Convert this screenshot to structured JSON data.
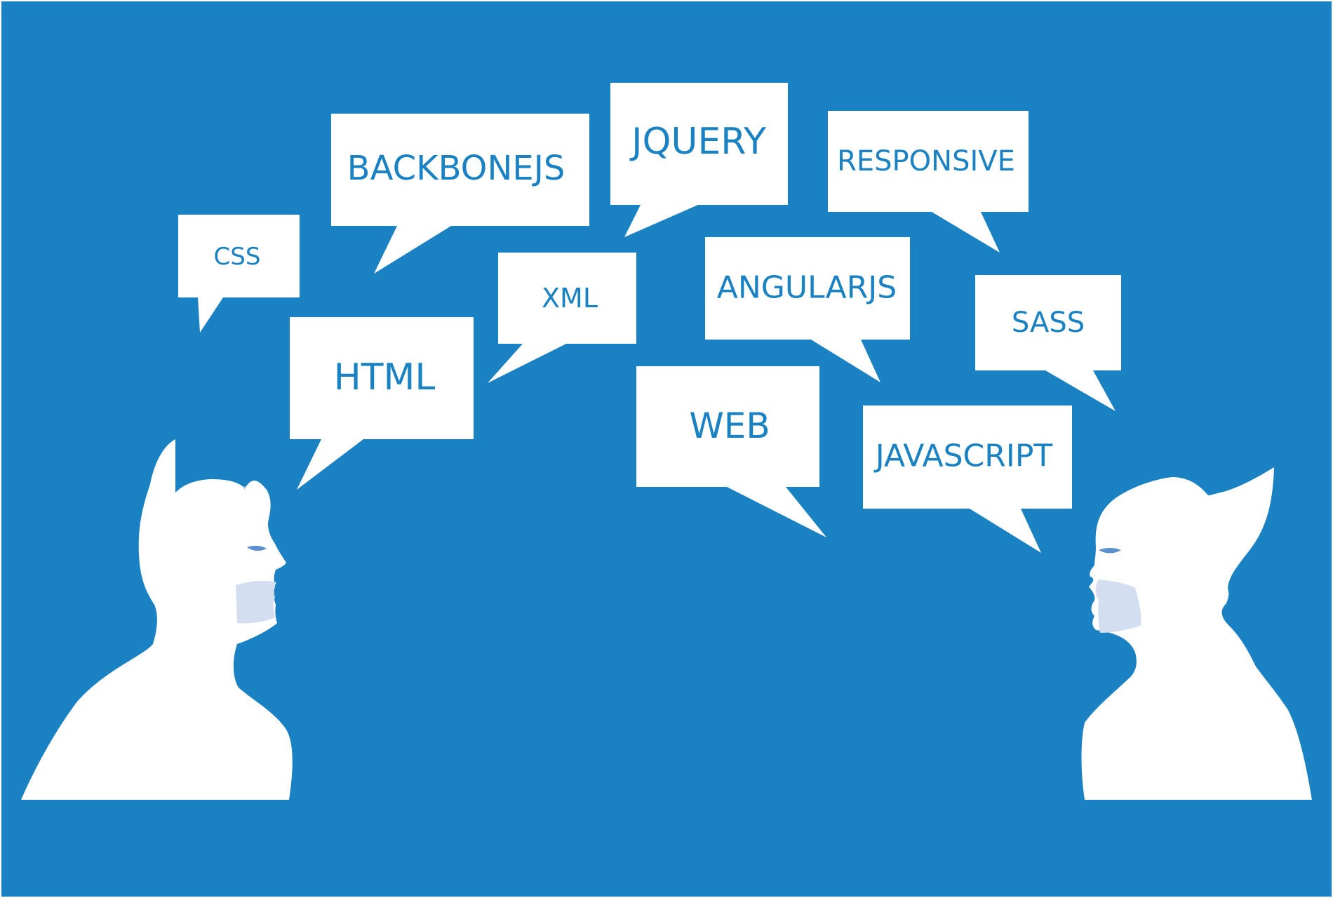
{
  "colors": {
    "background": "#1a81c3",
    "bubble": "#ffffff",
    "text": "#1a81c3",
    "figure": "#ffffff",
    "eye": "#5b8fd0",
    "mouth": "#d3def1"
  },
  "bubbles": {
    "css": "CSS",
    "backbonejs": "BACKBONEJS",
    "jquery": "JQUERY",
    "responsive": "RESPONSIVE",
    "xml": "XML",
    "angularjs": "ANGULARJS",
    "sass": "SASS",
    "html": "HTML",
    "web": "WEB",
    "javascript": "JAVASCRIPT"
  },
  "figures": {
    "left": "person-silhouette",
    "right": "person-silhouette"
  }
}
